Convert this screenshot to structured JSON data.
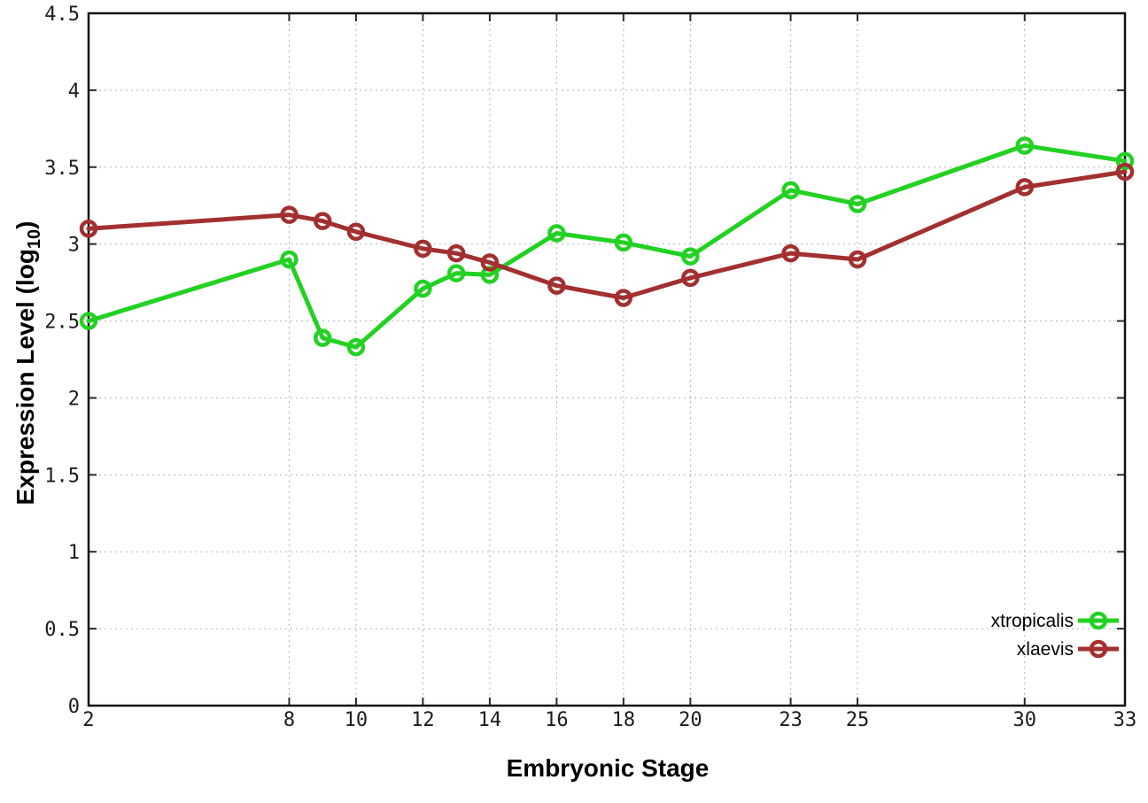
{
  "page": {
    "background_color": "#ffffff"
  },
  "chart_data": {
    "type": "line",
    "title": "",
    "xlabel": "Embryonic Stage",
    "ylabel_prefix": "Expression Level (log",
    "ylabel_sub": "10",
    "ylabel_suffix": ")",
    "x": [
      2,
      8,
      9,
      10,
      12,
      13,
      14,
      16,
      18,
      20,
      23,
      25,
      30,
      33
    ],
    "series": [
      {
        "name": "xtropicalis",
        "color": "#23d123",
        "values": [
          2.5,
          2.9,
          2.39,
          2.33,
          2.71,
          2.81,
          2.8,
          3.07,
          3.01,
          2.92,
          3.35,
          3.26,
          3.64,
          3.54
        ]
      },
      {
        "name": "xlaevis",
        "color": "#a33030",
        "values": [
          3.1,
          3.19,
          3.15,
          3.08,
          2.97,
          2.94,
          2.88,
          2.73,
          2.65,
          2.78,
          2.94,
          2.9,
          3.37,
          3.47
        ]
      }
    ],
    "xlim": [
      2,
      33
    ],
    "ylim": [
      0,
      4.5
    ],
    "xtick_values": [
      2,
      8,
      10,
      12,
      14,
      16,
      18,
      20,
      23,
      25,
      30,
      33
    ],
    "xtick_labels": [
      "2",
      "8",
      "10",
      "12",
      "14",
      "16",
      "18",
      "20",
      "23",
      "25",
      "30",
      "33"
    ],
    "ytick_values": [
      0,
      0.5,
      1,
      1.5,
      2,
      2.5,
      3,
      3.5,
      4,
      4.5
    ],
    "ytick_labels": [
      "0",
      "0.5",
      "1",
      "1.5",
      "2",
      "2.5",
      "3",
      "3.5",
      "4",
      "4.5"
    ],
    "grid": true,
    "grid_style": "dotted",
    "legend_position": "bottom-right-inside",
    "marker": "open-circle"
  }
}
